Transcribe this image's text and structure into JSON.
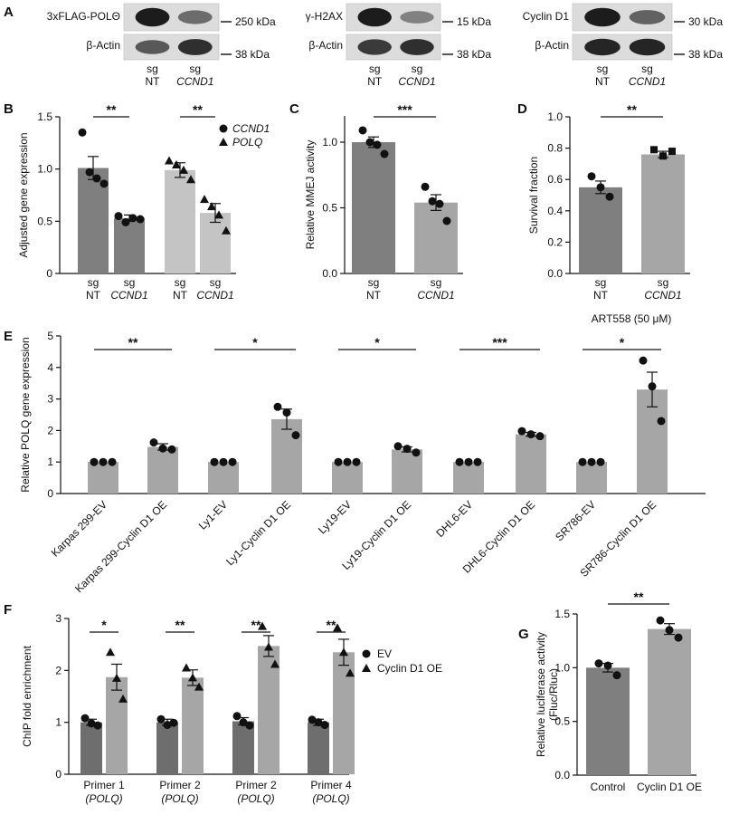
{
  "panels": {
    "A": {
      "letter": "A",
      "blots": [
        {
          "target": "3xFLAG-POLΘ",
          "target_kda": "250 kDa",
          "loading": "β-Actin",
          "loading_kda": "38 kDa",
          "lanes": [
            [
              "sg",
              "NT"
            ],
            [
              "sg",
              "CCND1"
            ]
          ],
          "intensity": [
            [
              0.95,
              0.55
            ],
            [
              0.65,
              0.85
            ]
          ]
        },
        {
          "target": "γ-H2AX",
          "target_kda": "15 kDa",
          "loading": "β-Actin",
          "loading_kda": "38 kDa",
          "lanes": [
            [
              "sg",
              "NT"
            ],
            [
              "sg",
              "CCND1"
            ]
          ],
          "intensity": [
            [
              0.95,
              0.45
            ],
            [
              0.8,
              0.85
            ]
          ]
        },
        {
          "target": "Cyclin D1",
          "target_kda": "30 kDa",
          "loading": "β-Actin",
          "loading_kda": "38 kDa",
          "lanes": [
            [
              "sg",
              "NT"
            ],
            [
              "sg",
              "CCND1"
            ]
          ],
          "intensity": [
            [
              0.95,
              0.6
            ],
            [
              0.9,
              0.9
            ]
          ]
        }
      ]
    }
  },
  "chart_data": [
    {
      "panel": "B",
      "type": "bar",
      "ylabel": "Adjusted gene expression",
      "ylim": [
        0,
        1.5
      ],
      "yticks": [
        "0",
        "0.5",
        "1.0",
        "1.5"
      ],
      "categories": [
        [
          "sg",
          "NT"
        ],
        [
          "sg",
          "CCND1"
        ],
        [
          "sg",
          "NT"
        ],
        [
          "sg",
          "CCND1"
        ]
      ],
      "values": [
        1.01,
        0.53,
        0.99,
        0.58
      ],
      "sem": [
        0.11,
        0.03,
        0.07,
        0.09
      ],
      "points": [
        [
          1.35,
          0.97,
          0.91,
          0.86
        ],
        [
          0.55,
          0.49,
          0.53,
          0.52
        ],
        [
          1.08,
          1.04,
          0.99,
          0.9
        ],
        [
          0.71,
          0.64,
          0.56,
          0.41
        ]
      ],
      "colors": [
        "#7f7f7f",
        "#7f7f7f",
        "#c4c4c4",
        "#c4c4c4"
      ],
      "markers": [
        "circle",
        "circle",
        "triangle",
        "triangle"
      ],
      "legend": [
        {
          "marker": "circle",
          "label": "CCND1"
        },
        {
          "marker": "triangle",
          "label": "POLQ"
        }
      ],
      "legend_position": "top-right",
      "significance": [
        {
          "from": 0,
          "to": 1,
          "label": "**"
        },
        {
          "from": 2,
          "to": 3,
          "label": "**"
        }
      ]
    },
    {
      "panel": "C",
      "type": "bar",
      "ylabel": "Relative MMEJ activity",
      "ylim": [
        0,
        1.2
      ],
      "yticks": [
        "0.0",
        "0.5",
        "1.0"
      ],
      "categories": [
        [
          "sg",
          "NT"
        ],
        [
          "sg",
          "CCND1"
        ]
      ],
      "values": [
        1.0,
        0.54
      ],
      "sem": [
        0.04,
        0.06
      ],
      "points": [
        [
          1.09,
          1.0,
          0.98,
          0.91
        ],
        [
          0.66,
          0.55,
          0.53,
          0.4
        ]
      ],
      "colors": [
        "#7f7f7f",
        "#a6a6a6"
      ],
      "markers": [
        "circle",
        "circle"
      ],
      "significance": [
        {
          "from": 0,
          "to": 1,
          "label": "***"
        }
      ]
    },
    {
      "panel": "D",
      "type": "bar",
      "ylabel": "Survival fraction",
      "ylim": [
        0,
        1.0
      ],
      "yticks": [
        "0.0",
        "0.2",
        "0.4",
        "0.6",
        "0.8",
        "1.0"
      ],
      "categories": [
        [
          "sg",
          "NT"
        ],
        [
          "sg",
          "CCND1"
        ]
      ],
      "values": [
        0.55,
        0.76
      ],
      "sem": [
        0.04,
        0.02
      ],
      "points": [
        [
          0.62,
          0.55,
          0.49
        ],
        [
          0.79,
          0.75,
          0.78
        ]
      ],
      "colors": [
        "#7f7f7f",
        "#a6a6a6"
      ],
      "markers": [
        "circle",
        "square"
      ],
      "xlabel": "ART558 (50 μM)",
      "significance": [
        {
          "from": 0,
          "to": 1,
          "label": "**"
        }
      ]
    },
    {
      "panel": "E",
      "type": "bar",
      "ylabel": "Relative POLQ gene expression",
      "ylabel_italic": "POLQ",
      "ylim": [
        0,
        5
      ],
      "yticks": [
        "0",
        "1",
        "2",
        "3",
        "4",
        "5"
      ],
      "categories": [
        "Karpas 299-EV",
        "Karpas 299-Cyclin D1 OE",
        "Ly1-EV",
        "Ly1-Cyclin D1 OE",
        "Ly19-EV",
        "Ly19-Cyclin D1 OE",
        "DHL6-EV",
        "DHL6-Cyclin D1 OE",
        "SR786-EV",
        "SR786-Cyclin D1 OE"
      ],
      "values": [
        1.0,
        1.48,
        1.0,
        2.36,
        1.0,
        1.4,
        1.0,
        1.88,
        1.0,
        3.3
      ],
      "sem": [
        0,
        0.1,
        0,
        0.32,
        0,
        0.08,
        0,
        0.06,
        0,
        0.55
      ],
      "points": [
        [
          1,
          1,
          1
        ],
        [
          1.62,
          1.43,
          1.4
        ],
        [
          1,
          1,
          1
        ],
        [
          2.75,
          2.57,
          1.85
        ],
        [
          1,
          1,
          1
        ],
        [
          1.5,
          1.42,
          1.3
        ],
        [
          1,
          1,
          1
        ],
        [
          1.98,
          1.88,
          1.82
        ],
        [
          1,
          1,
          1
        ],
        [
          4.22,
          3.4,
          2.3
        ]
      ],
      "colors": [
        "#a6a6a6",
        "#a6a6a6",
        "#a6a6a6",
        "#a6a6a6",
        "#a6a6a6",
        "#a6a6a6",
        "#a6a6a6",
        "#a6a6a6",
        "#a6a6a6",
        "#a6a6a6"
      ],
      "significance": [
        {
          "from": 0,
          "to": 1,
          "label": "**"
        },
        {
          "from": 2,
          "to": 3,
          "label": "*"
        },
        {
          "from": 4,
          "to": 5,
          "label": "*"
        },
        {
          "from": 6,
          "to": 7,
          "label": "***"
        },
        {
          "from": 8,
          "to": 9,
          "label": "*"
        }
      ]
    },
    {
      "panel": "F",
      "type": "bar",
      "ylabel": "ChIP fold enrichment",
      "ylim": [
        0,
        3
      ],
      "yticks": [
        "0",
        "1",
        "2",
        "3"
      ],
      "groups": [
        [
          "Primer 1",
          "(POLQ)"
        ],
        [
          "Primer 2",
          "(POLQ)"
        ],
        [
          "Primer 2",
          "(POLQ)"
        ],
        [
          "Primer 4",
          "(POLQ)"
        ]
      ],
      "series": [
        {
          "name": "EV",
          "marker": "circle",
          "color": "#6e6e6e",
          "values": [
            1.0,
            1.0,
            1.02,
            1.0
          ],
          "sem": [
            0.06,
            0.06,
            0.07,
            0.06
          ],
          "points": [
            [
              1.08,
              0.98,
              0.94
            ],
            [
              1.06,
              0.95,
              0.99
            ],
            [
              1.12,
              1.0,
              0.94
            ],
            [
              1.05,
              1.0,
              0.95
            ]
          ]
        },
        {
          "name": "Cyclin D1 OE",
          "marker": "triangle",
          "color": "#a6a6a6",
          "values": [
            1.87,
            1.86,
            2.47,
            2.35
          ],
          "sem": [
            0.25,
            0.15,
            0.2,
            0.25
          ],
          "points": [
            [
              2.35,
              1.85,
              1.45
            ],
            [
              2.05,
              1.86,
              1.68
            ],
            [
              2.85,
              2.45,
              2.12
            ],
            [
              2.82,
              2.35,
              1.95
            ]
          ]
        }
      ],
      "legend_position": "right",
      "significance": [
        {
          "group": 0,
          "label": "*"
        },
        {
          "group": 1,
          "label": "**"
        },
        {
          "group": 2,
          "label": "**"
        },
        {
          "group": 3,
          "label": "**"
        }
      ]
    },
    {
      "panel": "G",
      "type": "bar",
      "ylabel": "Relative luciferase activity",
      "ylabel2": "(Fluc/Rluc)",
      "ylim": [
        0,
        1.5
      ],
      "yticks": [
        "0.0",
        "0.5",
        "1.0",
        "1.5"
      ],
      "categories": [
        "Control",
        "Cyclin D1 OE"
      ],
      "values": [
        1.0,
        1.36
      ],
      "sem": [
        0.04,
        0.05
      ],
      "points": [
        [
          1.04,
          1.02,
          0.93
        ],
        [
          1.44,
          1.35,
          1.28
        ]
      ],
      "colors": [
        "#7f7f7f",
        "#a6a6a6"
      ],
      "markers": [
        "circle",
        "circle"
      ],
      "significance": [
        {
          "from": 0,
          "to": 1,
          "label": "**"
        }
      ]
    }
  ]
}
